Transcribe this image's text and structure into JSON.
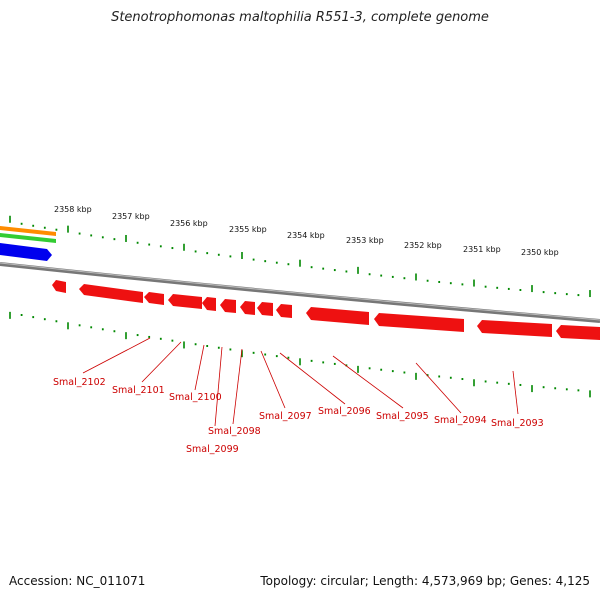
{
  "title": "Stenotrophomonas maltophilia R551-3, complete genome",
  "footer": {
    "accession": "Accession: NC_011071",
    "topology": "Topology: circular; Length: 4,573,969 bp; Genes: 4,125"
  },
  "colors": {
    "gene": "#ee1111",
    "gene_label": "#cc0000",
    "tick": "#008800",
    "backbone": "#888888",
    "track_orange": "#ff8c00",
    "track_green": "#33cc33",
    "track_blue": "#0000ee"
  },
  "scale_labels": [
    "2358 kbp",
    "2357 kbp",
    "2356 kbp",
    "2355 kbp",
    "2354 kbp",
    "2353 kbp",
    "2352 kbp",
    "2351 kbp",
    "2350 kbp"
  ],
  "gene_labels": [
    "Smal_2102",
    "Smal_2101",
    "Smal_2100",
    "Smal_2098",
    "Smal_2099",
    "Smal_2097",
    "Smal_2096",
    "Smal_2095",
    "Smal_2094",
    "Smal_2093"
  ]
}
